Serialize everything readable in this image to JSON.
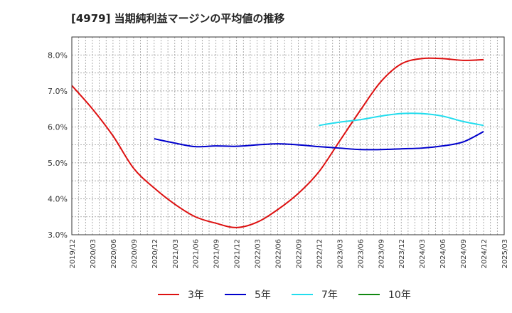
{
  "chart_data": {
    "type": "line",
    "title": "[4979]  当期純利益マージンの平均値の推移",
    "y_unit": "%",
    "ylim": [
      3.0,
      8.5
    ],
    "y_ticks": [
      "8.0%",
      "7.0%",
      "6.0%",
      "5.0%",
      "4.0%",
      "3.0%"
    ],
    "y_tick_values": [
      8.0,
      7.0,
      6.0,
      5.0,
      4.0,
      3.0
    ],
    "x_ticks": [
      "2019/12",
      "2020/03",
      "2020/06",
      "2020/09",
      "2020/12",
      "2021/03",
      "2021/06",
      "2021/09",
      "2021/12",
      "2022/03",
      "2022/06",
      "2022/09",
      "2022/12",
      "2023/03",
      "2023/06",
      "2023/09",
      "2023/12",
      "2024/03",
      "2024/06",
      "2024/09",
      "2024/12",
      "2025/03"
    ],
    "grid": true,
    "legend_position": "bottom",
    "series": [
      {
        "name": "3年",
        "color": "#dd1111",
        "x": [
          "2019/12",
          "2020/03",
          "2020/06",
          "2020/09",
          "2020/12",
          "2021/03",
          "2021/06",
          "2021/09",
          "2021/12",
          "2022/03",
          "2022/06",
          "2022/09",
          "2022/12",
          "2023/03",
          "2023/06",
          "2023/09",
          "2023/12",
          "2024/03",
          "2024/06",
          "2024/09",
          "2024/12"
        ],
        "values": [
          7.15,
          6.5,
          5.75,
          4.85,
          4.3,
          3.85,
          3.5,
          3.32,
          3.2,
          3.35,
          3.7,
          4.15,
          4.75,
          5.6,
          6.45,
          7.25,
          7.75,
          7.9,
          7.9,
          7.85,
          7.87
        ]
      },
      {
        "name": "5年",
        "color": "#0000cc",
        "x": [
          "2020/12",
          "2021/03",
          "2021/06",
          "2021/09",
          "2021/12",
          "2022/03",
          "2022/06",
          "2022/09",
          "2022/12",
          "2023/03",
          "2023/06",
          "2023/09",
          "2023/12",
          "2024/03",
          "2024/06",
          "2024/09",
          "2024/12"
        ],
        "values": [
          5.67,
          5.55,
          5.45,
          5.47,
          5.46,
          5.5,
          5.53,
          5.5,
          5.45,
          5.41,
          5.37,
          5.37,
          5.39,
          5.41,
          5.47,
          5.58,
          5.87
        ]
      },
      {
        "name": "7年",
        "color": "#22ddee",
        "x": [
          "2022/12",
          "2023/03",
          "2023/06",
          "2023/09",
          "2023/12",
          "2024/03",
          "2024/06",
          "2024/09",
          "2024/12"
        ],
        "values": [
          6.04,
          6.13,
          6.2,
          6.3,
          6.37,
          6.37,
          6.3,
          6.15,
          6.04
        ]
      },
      {
        "name": "10年",
        "color": "#118811",
        "x": [],
        "values": []
      }
    ]
  }
}
